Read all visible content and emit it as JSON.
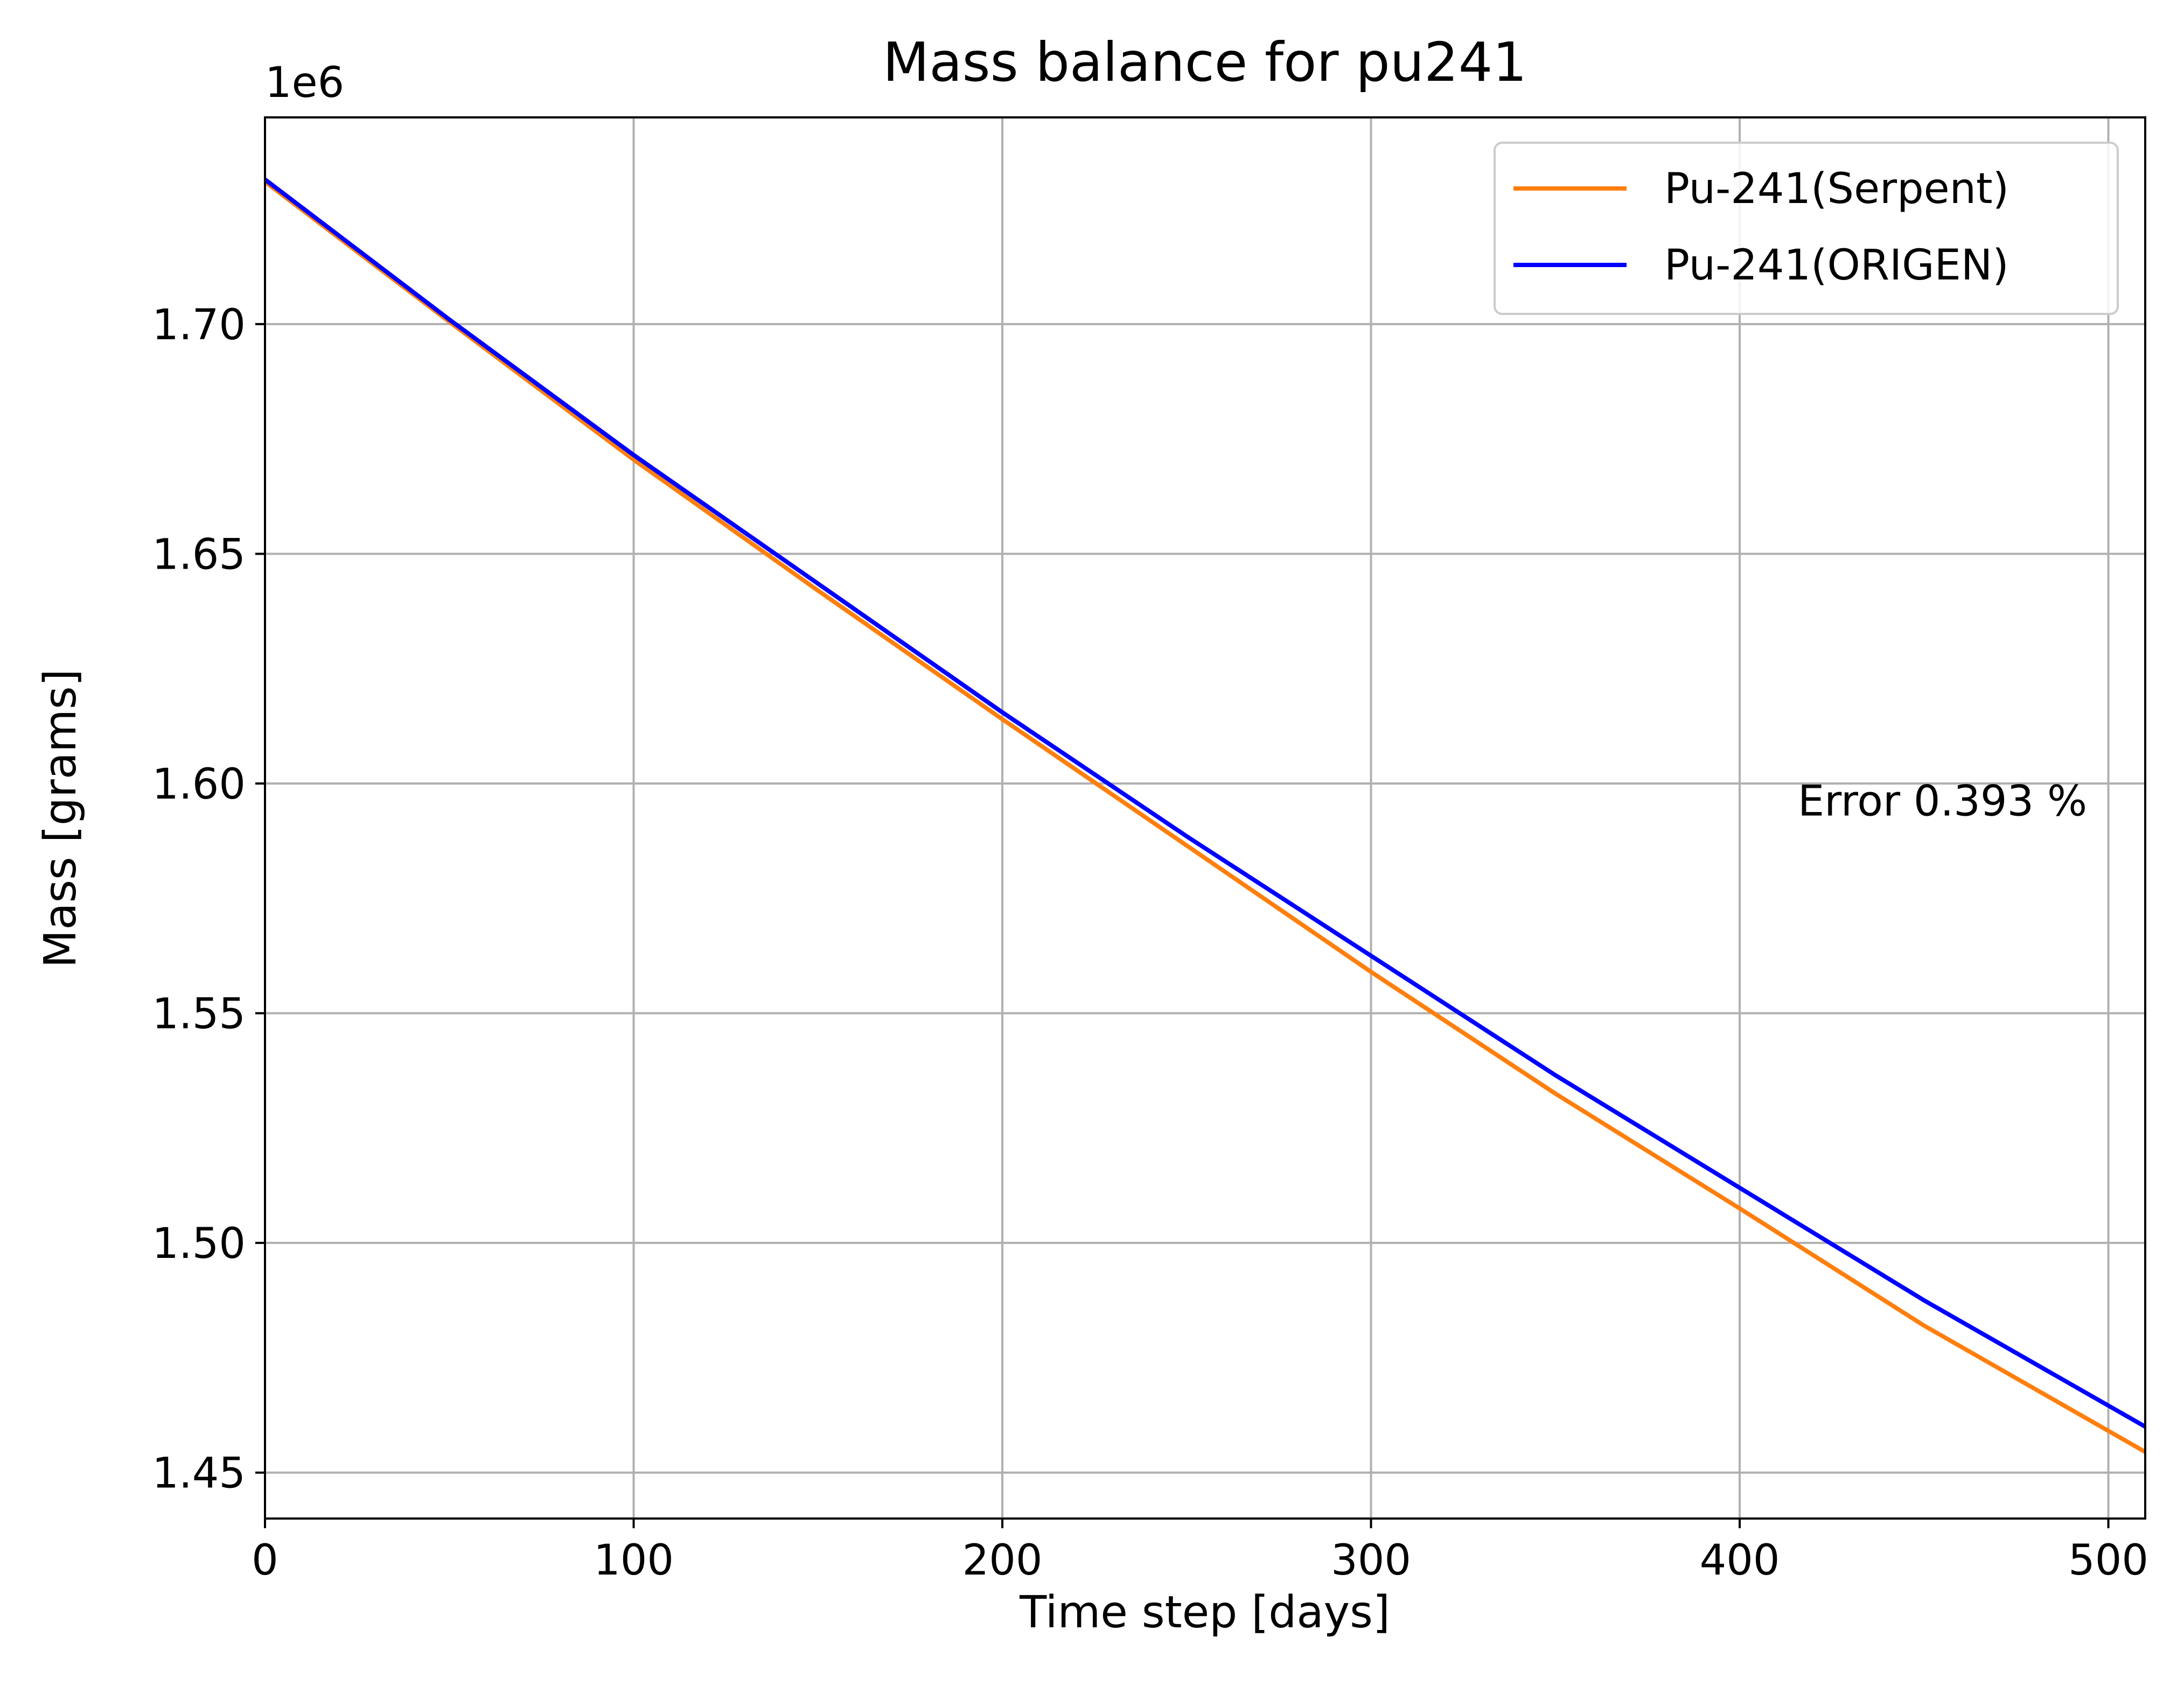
{
  "chart_data": {
    "type": "line",
    "title": "Mass balance for pu241",
    "xlabel": "Time step [days]",
    "ylabel": "Mass [grams]",
    "y_offset_label": "1e6",
    "xlim": [
      0,
      510
    ],
    "ylim": [
      1.44,
      1.745
    ],
    "xticks": [
      0,
      100,
      200,
      300,
      400,
      500
    ],
    "xtick_labels": [
      "0",
      "100",
      "200",
      "300",
      "400",
      "500"
    ],
    "yticks": [
      1.45,
      1.5,
      1.55,
      1.6,
      1.65,
      1.7
    ],
    "ytick_labels": [
      "1.45",
      "1.50",
      "1.55",
      "1.60",
      "1.65",
      "1.70"
    ],
    "grid": true,
    "legend_position": "top-right",
    "annotation": {
      "text": "Error  0.393 %",
      "x": 455,
      "y": 1.593
    },
    "series": [
      {
        "name": "Pu-241(Serpent)",
        "color": "#ff7f0e",
        "x": [
          0,
          50,
          100,
          150,
          200,
          250,
          300,
          350,
          400,
          450,
          510
        ],
        "y": [
          1.731,
          1.7005,
          1.6705,
          1.642,
          1.614,
          1.5865,
          1.559,
          1.5325,
          1.5075,
          1.482,
          1.4545
        ]
      },
      {
        "name": "Pu-241(ORIGEN)",
        "color": "#0000ff",
        "x": [
          0,
          50,
          100,
          150,
          200,
          250,
          300,
          350,
          400,
          450,
          510
        ],
        "y": [
          1.7315,
          1.701,
          1.6715,
          1.6435,
          1.6155,
          1.5885,
          1.5625,
          1.5365,
          1.512,
          1.4875,
          1.46
        ]
      }
    ]
  }
}
